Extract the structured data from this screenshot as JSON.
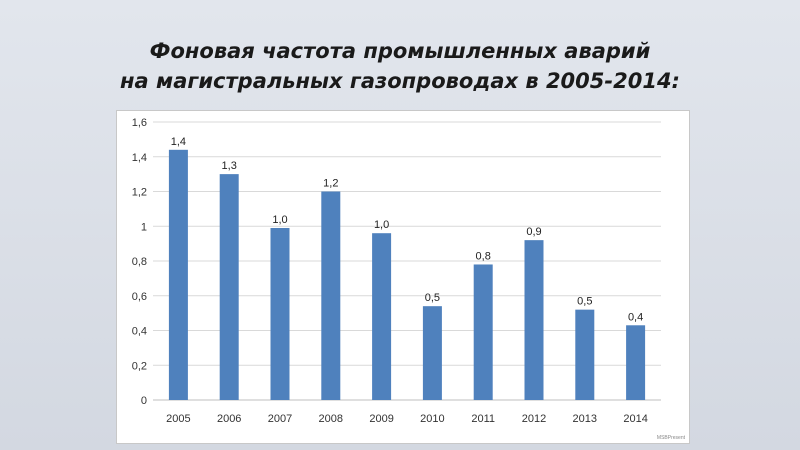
{
  "slide": {
    "title_line1": "Фоновая частота промышленных аварий",
    "title_line2": "на магистральных газопроводах в 2005-2014:",
    "watermark": "MSBPresent"
  },
  "chart_data": {
    "type": "bar",
    "title": "",
    "xlabel": "",
    "ylabel": "",
    "categories": [
      "2005",
      "2006",
      "2007",
      "2008",
      "2009",
      "2010",
      "2011",
      "2012",
      "2013",
      "2014"
    ],
    "values": [
      1.44,
      1.3,
      0.99,
      1.2,
      0.96,
      0.54,
      0.78,
      0.92,
      0.52,
      0.43
    ],
    "data_labels": [
      "1,4",
      "1,3",
      "1,0",
      "1,2",
      "1,0",
      "0,5",
      "0,8",
      "0,9",
      "0,5",
      "0,4"
    ],
    "ylim": [
      0,
      1.6
    ],
    "yticks": [
      0,
      0.2,
      0.4,
      0.6,
      0.8,
      1,
      1.2,
      1.4,
      1.6
    ],
    "ytick_labels": [
      "0",
      "0,2",
      "0,4",
      "0,6",
      "0,8",
      "1",
      "1,2",
      "1,4",
      "1,6"
    ],
    "grid": true,
    "legend": "none",
    "bar_color": "#4f81bd",
    "grid_color": "#d9d9d9"
  }
}
